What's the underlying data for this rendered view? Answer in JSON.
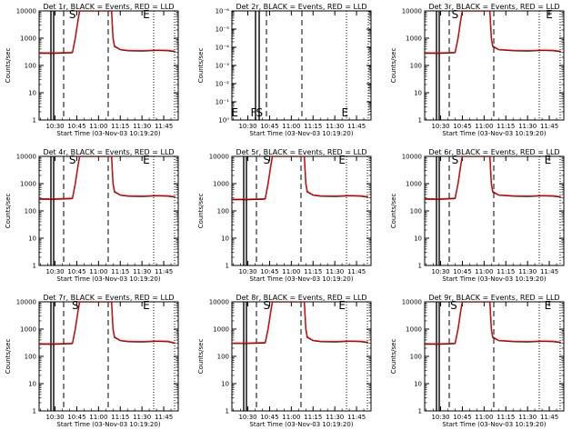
{
  "panels": [
    {
      "title": "Det 1r, BLACK = Events, RED = LLD",
      "xticks": [
        "10:30",
        "10:45",
        "11:00",
        "11:15",
        "11:30",
        "11:45"
      ],
      "xlabel": "Start Time (03-Nov-03 10:19:20)",
      "ylabel": "Counts/sec",
      "yticks": [
        "1",
        "10",
        "100",
        "1000",
        "10000"
      ],
      "markers": [
        {
          "label": "S",
          "x": "10:42"
        },
        {
          "label": "E",
          "x": "11:33"
        }
      ]
    },
    {
      "title": "Det 2r, BLACK = Events, RED = LLD",
      "xticks": [
        "10:30",
        "10:45",
        "11:00",
        "11:15",
        "11:30",
        "11:45"
      ],
      "xlabel": "Start Time (03-Nov-03 10:19:20)",
      "ylabel": "Counts/sec",
      "yticks": [
        "10⁰",
        "10⁻¹",
        "10⁻²",
        "10⁻³",
        "10⁻⁴",
        "10⁻⁵",
        "10⁻⁶"
      ],
      "markers": [
        {
          "label": "E",
          "x": "10:21"
        },
        {
          "label": "F",
          "x": "10:34"
        },
        {
          "label": "S",
          "x": "10:38"
        },
        {
          "label": "E",
          "x": "11:37"
        }
      ]
    },
    {
      "title": "Det 3r, BLACK = Events, RED = LLD",
      "xticks": [
        "10:30",
        "10:45",
        "11:00",
        "11:15",
        "11:30",
        "11:45"
      ],
      "xlabel": "Start Time (03-Nov-03 10:19:20)",
      "ylabel": "Counts/sec",
      "yticks": [
        "1",
        "10",
        "100",
        "1000",
        "10000"
      ],
      "markers": [
        {
          "label": "S",
          "x": "10:40"
        },
        {
          "label": "E",
          "x": "11:45"
        }
      ]
    },
    {
      "title": "Det 4r, BLACK = Events, RED = LLD",
      "xticks": [
        "10:30",
        "10:45",
        "11:00",
        "11:15",
        "11:30",
        "11:45"
      ],
      "xlabel": "Start Time (03-Nov-03 10:19:20)",
      "ylabel": "Counts/sec",
      "yticks": [
        "1",
        "10",
        "100",
        "1000",
        "10000"
      ],
      "markers": [
        {
          "label": "S",
          "x": "10:42"
        },
        {
          "label": "E",
          "x": "11:33"
        }
      ]
    },
    {
      "title": "Det 5r, BLACK = Events, RED = LLD",
      "xticks": [
        "10:30",
        "10:45",
        "11:00",
        "11:15",
        "11:30",
        "11:45"
      ],
      "xlabel": "Start Time (03-Nov-03 10:19:20)",
      "ylabel": "Counts/sec",
      "yticks": [
        "1",
        "10",
        "100",
        "1000",
        "10000"
      ],
      "markers": [
        {
          "label": "S",
          "x": "10:43"
        },
        {
          "label": "E",
          "x": "11:35"
        }
      ]
    },
    {
      "title": "Det 6r, BLACK = Events, RED = LLD",
      "xticks": [
        "10:30",
        "10:45",
        "11:00",
        "11:15",
        "11:30",
        "11:45"
      ],
      "xlabel": "Start Time (03-Nov-03 10:19:20)",
      "ylabel": "Counts/sec",
      "yticks": [
        "1",
        "10",
        "100",
        "1000",
        "10000"
      ],
      "markers": [
        {
          "label": "S",
          "x": "10:40"
        },
        {
          "label": "E",
          "x": "11:44"
        }
      ]
    },
    {
      "title": "Det 7r, BLACK = Events, RED = LLD",
      "xticks": [
        "10:30",
        "10:45",
        "11:00",
        "11:15",
        "11:30",
        "11:45"
      ],
      "xlabel": "Start Time (03-Nov-03 10:19:20)",
      "ylabel": "Counts/sec",
      "yticks": [
        "1",
        "10",
        "100",
        "1000",
        "10000"
      ],
      "markers": [
        {
          "label": "S",
          "x": "10:44"
        },
        {
          "label": "E",
          "x": "11:33"
        }
      ]
    },
    {
      "title": "Det 8r, BLACK = Events, RED = LLD",
      "xticks": [
        "10:30",
        "10:45",
        "11:00",
        "11:15",
        "11:30",
        "11:45"
      ],
      "xlabel": "Start Time (03-Nov-03 10:19:20)",
      "ylabel": "Counts/sec",
      "yticks": [
        "1",
        "10",
        "100",
        "1000",
        "10000"
      ],
      "markers": [
        {
          "label": "S",
          "x": "10:43"
        },
        {
          "label": "E",
          "x": "11:35"
        }
      ]
    },
    {
      "title": "Det 9r, BLACK = Events, RED = LLD",
      "xticks": [
        "10:30",
        "10:45",
        "11:00",
        "11:15",
        "11:30",
        "11:45"
      ],
      "xlabel": "Start Time (03-Nov-03 10:19:20)",
      "ylabel": "Counts/sec",
      "yticks": [
        "1",
        "10",
        "100",
        "1000",
        "10000"
      ],
      "markers": [
        {
          "label": "S",
          "x": "10:39"
        },
        {
          "label": "E",
          "x": "11:44"
        }
      ]
    }
  ],
  "chart_data": [
    {
      "type": "line",
      "title": "Det 1r, BLACK = Events, RED = LLD",
      "xlabel": "Start Time (03-Nov-03 10:19:20)",
      "ylabel": "Counts/sec",
      "yscale": "log",
      "ylim": [
        1,
        10000
      ],
      "xlim": [
        "10:19",
        "11:55"
      ],
      "x": [
        "10:19",
        "10:30",
        "10:40",
        "10:41",
        "10:42",
        "10:44",
        "10:46",
        "10:47",
        "11:09",
        "11:10",
        "11:11",
        "11:15",
        "11:20",
        "11:30",
        "11:40",
        "11:48",
        "11:53"
      ],
      "series": [
        {
          "name": "Events",
          "color": "#000000",
          "values": [
            280,
            280,
            290,
            290,
            300,
            1000,
            5000,
            10000,
            10000,
            1000,
            500,
            380,
            350,
            340,
            360,
            350,
            320
          ]
        },
        {
          "name": "LLD",
          "color": "#ff0000",
          "values": [
            290,
            290,
            300,
            300,
            310,
            1050,
            5200,
            10000,
            10000,
            1050,
            520,
            390,
            360,
            350,
            370,
            360,
            330
          ]
        }
      ]
    },
    {
      "type": "line",
      "title": "Det 2r, BLACK = Events, RED = LLD",
      "xlabel": "Start Time (03-Nov-03 10:19:20)",
      "ylabel": "Counts/sec",
      "yscale": "log",
      "ylim": [
        1e-06,
        1
      ],
      "xlim": [
        "10:19",
        "11:55"
      ],
      "x": [],
      "series": [
        {
          "name": "Events",
          "color": "#000000",
          "values": []
        },
        {
          "name": "LLD",
          "color": "#ff0000",
          "values": []
        }
      ]
    },
    {
      "type": "line",
      "title": "Det 3r, BLACK = Events, RED = LLD",
      "xlabel": "Start Time (03-Nov-03 10:19:20)",
      "ylabel": "Counts/sec",
      "yscale": "log",
      "ylim": [
        1,
        10000
      ],
      "xlim": [
        "10:19",
        "11:55"
      ],
      "x": [
        "10:19",
        "10:30",
        "10:38",
        "10:39",
        "10:40",
        "10:42",
        "10:44",
        "10:45",
        "11:04",
        "11:05",
        "11:06",
        "11:10",
        "11:20",
        "11:30",
        "11:40",
        "11:48",
        "11:53"
      ],
      "series": [
        {
          "name": "Events",
          "color": "#000000",
          "values": [
            280,
            280,
            290,
            290,
            300,
            1000,
            5000,
            10000,
            10000,
            1000,
            500,
            380,
            350,
            340,
            360,
            350,
            320
          ]
        },
        {
          "name": "LLD",
          "color": "#ff0000",
          "values": [
            290,
            290,
            300,
            300,
            310,
            1050,
            5200,
            10000,
            10000,
            1050,
            520,
            390,
            360,
            350,
            370,
            360,
            330
          ]
        }
      ]
    },
    {
      "type": "line",
      "title": "Det 4r, BLACK = Events, RED = LLD",
      "xlabel": "Start Time (03-Nov-03 10:19:20)",
      "ylabel": "Counts/sec",
      "yscale": "log",
      "ylim": [
        1,
        10000
      ],
      "xlim": [
        "10:19",
        "11:55"
      ],
      "x": [
        "10:19",
        "10:30",
        "10:40",
        "10:41",
        "10:42",
        "10:44",
        "10:46",
        "10:47",
        "11:09",
        "11:10",
        "11:11",
        "11:15",
        "11:20",
        "11:30",
        "11:40",
        "11:48",
        "11:53"
      ],
      "series": [
        {
          "name": "Events",
          "color": "#000000",
          "values": [
            270,
            270,
            280,
            280,
            290,
            1000,
            5000,
            10000,
            10000,
            1000,
            500,
            380,
            350,
            340,
            360,
            350,
            320
          ]
        },
        {
          "name": "LLD",
          "color": "#ff0000",
          "values": [
            280,
            280,
            290,
            290,
            300,
            1050,
            5200,
            10000,
            10000,
            1050,
            520,
            390,
            360,
            350,
            370,
            360,
            330
          ]
        }
      ]
    },
    {
      "type": "line",
      "title": "Det 5r, BLACK = Events, RED = LLD",
      "xlabel": "Start Time (03-Nov-03 10:19:20)",
      "ylabel": "Counts/sec",
      "yscale": "log",
      "ylim": [
        1,
        10000
      ],
      "xlim": [
        "10:19",
        "11:55"
      ],
      "x": [
        "10:19",
        "10:30",
        "10:40",
        "10:41",
        "10:42",
        "10:44",
        "10:46",
        "10:47",
        "11:09",
        "11:10",
        "11:11",
        "11:15",
        "11:20",
        "11:30",
        "11:40",
        "11:48",
        "11:53"
      ],
      "series": [
        {
          "name": "Events",
          "color": "#000000",
          "values": [
            260,
            260,
            270,
            270,
            280,
            1000,
            5000,
            10000,
            10000,
            1000,
            500,
            380,
            350,
            340,
            360,
            350,
            320
          ]
        },
        {
          "name": "LLD",
          "color": "#ff0000",
          "values": [
            270,
            270,
            280,
            280,
            290,
            1050,
            5200,
            10000,
            10000,
            1050,
            520,
            390,
            360,
            350,
            370,
            360,
            330
          ]
        }
      ]
    },
    {
      "type": "line",
      "title": "Det 6r, BLACK = Events, RED = LLD",
      "xlabel": "Start Time (03-Nov-03 10:19:20)",
      "ylabel": "Counts/sec",
      "yscale": "log",
      "ylim": [
        1,
        10000
      ],
      "xlim": [
        "10:19",
        "11:55"
      ],
      "x": [
        "10:19",
        "10:30",
        "10:38",
        "10:39",
        "10:40",
        "10:42",
        "10:44",
        "10:45",
        "11:04",
        "11:05",
        "11:06",
        "11:10",
        "11:20",
        "11:30",
        "11:40",
        "11:48",
        "11:53"
      ],
      "series": [
        {
          "name": "Events",
          "color": "#000000",
          "values": [
            270,
            270,
            280,
            280,
            290,
            1000,
            5000,
            10000,
            10000,
            1000,
            500,
            380,
            350,
            340,
            360,
            350,
            320
          ]
        },
        {
          "name": "LLD",
          "color": "#ff0000",
          "values": [
            280,
            280,
            290,
            290,
            300,
            1050,
            5200,
            10000,
            10000,
            1050,
            520,
            390,
            360,
            350,
            370,
            360,
            330
          ]
        }
      ]
    },
    {
      "type": "line",
      "title": "Det 7r, BLACK = Events, RED = LLD",
      "xlabel": "Start Time (03-Nov-03 10:19:20)",
      "ylabel": "Counts/sec",
      "yscale": "log",
      "ylim": [
        1,
        10000
      ],
      "xlim": [
        "10:19",
        "11:55"
      ],
      "x": [
        "10:19",
        "10:30",
        "10:40",
        "10:41",
        "10:42",
        "10:44",
        "10:46",
        "10:47",
        "11:09",
        "11:10",
        "11:11",
        "11:15",
        "11:20",
        "11:30",
        "11:40",
        "11:48",
        "11:53"
      ],
      "series": [
        {
          "name": "Events",
          "color": "#000000",
          "values": [
            280,
            280,
            290,
            290,
            300,
            1000,
            5000,
            10000,
            10000,
            1000,
            500,
            380,
            350,
            340,
            360,
            350,
            300
          ]
        },
        {
          "name": "LLD",
          "color": "#ff0000",
          "values": [
            290,
            290,
            300,
            300,
            310,
            1050,
            5200,
            10000,
            10000,
            1050,
            520,
            390,
            360,
            350,
            370,
            360,
            310
          ]
        }
      ]
    },
    {
      "type": "line",
      "title": "Det 8r, BLACK = Events, RED = LLD",
      "xlabel": "Start Time (03-Nov-03 10:19:20)",
      "ylabel": "Counts/sec",
      "yscale": "log",
      "ylim": [
        1,
        10000
      ],
      "xlim": [
        "10:19",
        "11:55"
      ],
      "x": [
        "10:19",
        "10:30",
        "10:40",
        "10:41",
        "10:42",
        "10:44",
        "10:46",
        "10:47",
        "11:09",
        "11:10",
        "11:11",
        "11:15",
        "11:20",
        "11:30",
        "11:40",
        "11:48",
        "11:53"
      ],
      "series": [
        {
          "name": "Events",
          "color": "#000000",
          "values": [
            300,
            300,
            310,
            310,
            320,
            1000,
            5000,
            10000,
            10000,
            1000,
            500,
            380,
            350,
            340,
            360,
            350,
            320
          ]
        },
        {
          "name": "LLD",
          "color": "#ff0000",
          "values": [
            310,
            310,
            320,
            320,
            330,
            1050,
            5200,
            10000,
            10000,
            1050,
            520,
            390,
            360,
            350,
            370,
            360,
            330
          ]
        }
      ]
    },
    {
      "type": "line",
      "title": "Det 9r, BLACK = Events, RED = LLD",
      "xlabel": "Start Time (03-Nov-03 10:19:20)",
      "ylabel": "Counts/sec",
      "yscale": "log",
      "ylim": [
        1,
        10000
      ],
      "xlim": [
        "10:19",
        "11:55"
      ],
      "x": [
        "10:19",
        "10:30",
        "10:38",
        "10:39",
        "10:40",
        "10:42",
        "10:44",
        "10:45",
        "11:04",
        "11:05",
        "11:06",
        "11:10",
        "11:20",
        "11:30",
        "11:40",
        "11:48",
        "11:53"
      ],
      "series": [
        {
          "name": "Events",
          "color": "#000000",
          "values": [
            280,
            280,
            290,
            290,
            300,
            1000,
            5000,
            10000,
            10000,
            1000,
            500,
            380,
            350,
            340,
            360,
            350,
            320
          ]
        },
        {
          "name": "LLD",
          "color": "#ff0000",
          "values": [
            290,
            290,
            300,
            300,
            310,
            1050,
            5200,
            10000,
            10000,
            1050,
            520,
            390,
            360,
            350,
            370,
            360,
            330
          ]
        }
      ]
    }
  ]
}
